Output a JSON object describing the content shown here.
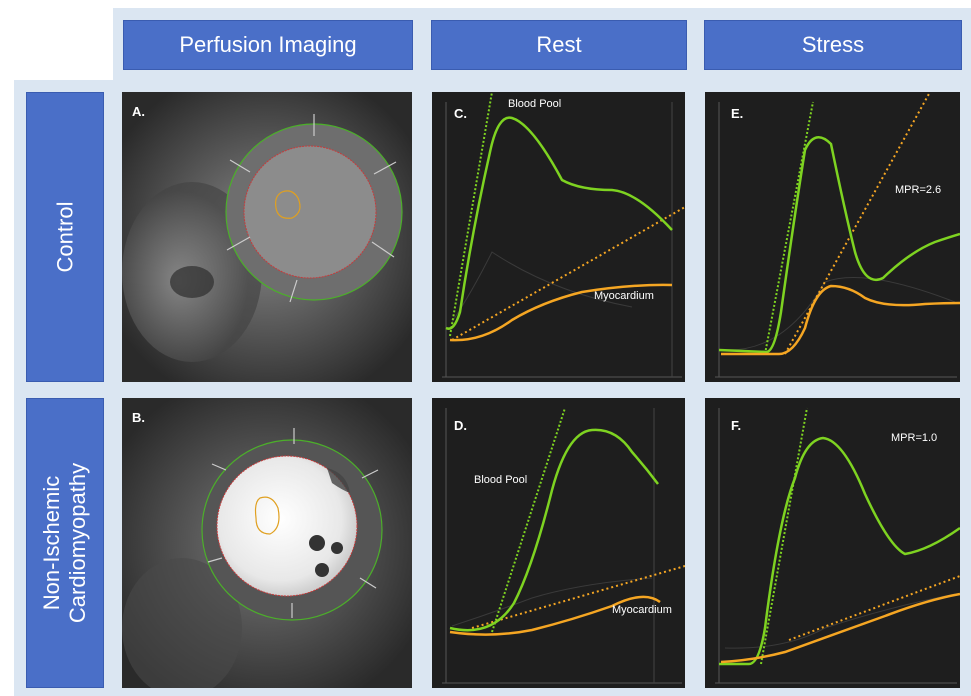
{
  "columns": {
    "perfusion": "Perfusion Imaging",
    "rest": "Rest",
    "stress": "Stress"
  },
  "rows": {
    "control": "Control",
    "nicm_line1": "Non-Ischemic",
    "nicm_line2": "Cardiomyopathy"
  },
  "panels": {
    "a": "A.",
    "b": "B.",
    "c": "C.",
    "d": "D.",
    "e": "E.",
    "f": "F."
  },
  "annotations": {
    "blood_pool_c": "Blood Pool",
    "myocardium_c": "Myocardium",
    "blood_pool_d": "Blood Pool",
    "myocardium_d": "Myocardium",
    "mpr_e": "MPR=2.6",
    "mpr_f": "MPR=1.0"
  },
  "colors": {
    "header": "#4a6fc8",
    "blood_pool_curve": "#7ed321",
    "myocardium_curve": "#f5a623",
    "plot_bg": "#1e1e1e"
  }
}
